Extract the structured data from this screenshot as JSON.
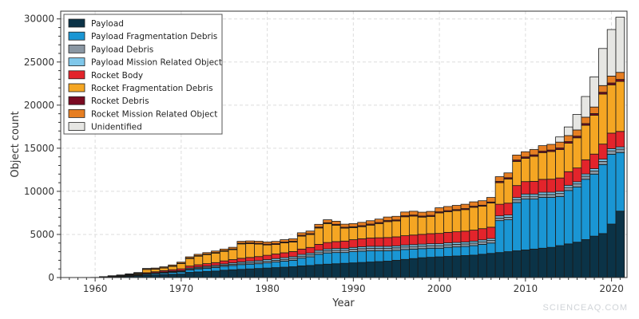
{
  "chart_data": {
    "type": "bar",
    "stacked": true,
    "xlabel": "Year",
    "ylabel": "Object count",
    "xlim": [
      1956,
      2021.8
    ],
    "ylim": [
      0,
      30900
    ],
    "xticks": [
      1960,
      1970,
      1980,
      1990,
      2000,
      2010,
      2020
    ],
    "yticks": [
      0,
      5000,
      10000,
      15000,
      20000,
      25000,
      30000
    ],
    "grid": true,
    "legend_position": "top-left",
    "x": [
      1957,
      1958,
      1959,
      1960,
      1961,
      1962,
      1963,
      1964,
      1965,
      1966,
      1967,
      1968,
      1969,
      1970,
      1971,
      1972,
      1973,
      1974,
      1975,
      1976,
      1977,
      1978,
      1979,
      1980,
      1981,
      1982,
      1983,
      1984,
      1985,
      1986,
      1987,
      1988,
      1989,
      1990,
      1991,
      1992,
      1993,
      1994,
      1995,
      1996,
      1997,
      1998,
      1999,
      2000,
      2001,
      2002,
      2003,
      2004,
      2005,
      2006,
      2007,
      2008,
      2009,
      2010,
      2011,
      2012,
      2013,
      2014,
      2015,
      2016,
      2017,
      2018,
      2019,
      2020,
      2021
    ],
    "series": [
      {
        "name": "Payload",
        "color": "#0b3347",
        "values": [
          0,
          5,
          10,
          20,
          40,
          70,
          100,
          140,
          200,
          260,
          300,
          350,
          380,
          400,
          600,
          650,
          700,
          750,
          850,
          900,
          950,
          1000,
          1050,
          1100,
          1150,
          1200,
          1250,
          1350,
          1400,
          1500,
          1550,
          1600,
          1650,
          1700,
          1750,
          1800,
          1850,
          1900,
          2000,
          2100,
          2200,
          2300,
          2350,
          2400,
          2450,
          2500,
          2550,
          2600,
          2700,
          2800,
          2900,
          3000,
          3100,
          3200,
          3300,
          3400,
          3500,
          3700,
          3900,
          4100,
          4400,
          4800,
          5100,
          6200,
          7700
        ]
      },
      {
        "name": "Payload Fragmentation Debris",
        "color": "#1a96d4",
        "values": [
          0,
          0,
          0,
          0,
          10,
          20,
          40,
          60,
          80,
          120,
          150,
          180,
          220,
          250,
          300,
          350,
          380,
          400,
          450,
          500,
          550,
          550,
          550,
          600,
          650,
          700,
          750,
          900,
          1000,
          1200,
          1300,
          1300,
          1250,
          1300,
          1300,
          1300,
          1250,
          1200,
          1150,
          1150,
          1100,
          1050,
          1050,
          1000,
          1050,
          1050,
          1050,
          1100,
          1150,
          1200,
          3700,
          3700,
          5600,
          5900,
          5800,
          5900,
          5800,
          5700,
          6200,
          6400,
          7000,
          7200,
          8000,
          8100,
          6800
        ]
      },
      {
        "name": "Payload Debris",
        "color": "#8a97a3",
        "values": [
          0,
          0,
          0,
          0,
          5,
          10,
          15,
          20,
          30,
          40,
          50,
          60,
          70,
          80,
          100,
          110,
          120,
          130,
          140,
          150,
          160,
          170,
          180,
          190,
          200,
          210,
          220,
          230,
          240,
          250,
          260,
          270,
          280,
          290,
          300,
          300,
          300,
          300,
          300,
          300,
          300,
          300,
          300,
          300,
          300,
          300,
          300,
          300,
          300,
          300,
          300,
          300,
          320,
          330,
          330,
          340,
          340,
          350,
          350,
          360,
          360,
          370,
          380,
          400,
          400
        ]
      },
      {
        "name": "Payload Mission Related Object",
        "color": "#7fc7ea",
        "values": [
          0,
          0,
          0,
          0,
          5,
          10,
          15,
          20,
          30,
          40,
          50,
          60,
          70,
          80,
          100,
          110,
          120,
          130,
          140,
          150,
          160,
          170,
          180,
          190,
          200,
          200,
          200,
          200,
          200,
          200,
          200,
          200,
          200,
          200,
          220,
          220,
          220,
          220,
          220,
          220,
          220,
          220,
          220,
          220,
          220,
          220,
          220,
          220,
          220,
          220,
          250,
          250,
          250,
          250,
          250,
          250,
          250,
          250,
          250,
          250,
          250,
          250,
          250,
          250,
          250
        ]
      },
      {
        "name": "Rocket Body",
        "color": "#e3242b",
        "values": [
          0,
          0,
          0,
          0,
          20,
          30,
          40,
          50,
          70,
          100,
          120,
          150,
          170,
          200,
          230,
          260,
          290,
          320,
          350,
          380,
          410,
          440,
          470,
          500,
          530,
          560,
          590,
          620,
          650,
          700,
          750,
          800,
          850,
          900,
          930,
          960,
          990,
          1020,
          1050,
          1080,
          1110,
          1140,
          1170,
          1200,
          1220,
          1240,
          1260,
          1280,
          1300,
          1320,
          1350,
          1380,
          1400,
          1450,
          1480,
          1500,
          1520,
          1550,
          1580,
          1600,
          1650,
          1700,
          1750,
          1800,
          1800
        ]
      },
      {
        "name": "Rocket Fragmentation Debris",
        "color": "#f5a623",
        "values": [
          0,
          0,
          0,
          0,
          10,
          40,
          50,
          80,
          90,
          380,
          300,
          300,
          390,
          600,
          870,
          1000,
          1050,
          1100,
          1110,
          1150,
          1670,
          1600,
          1450,
          1200,
          1100,
          1150,
          1100,
          1500,
          1500,
          1900,
          2200,
          1900,
          1500,
          1400,
          1400,
          1500,
          1650,
          1850,
          1840,
          2200,
          2200,
          2000,
          2000,
          2380,
          2400,
          2450,
          2500,
          2650,
          2600,
          2800,
          2500,
          2800,
          2800,
          2700,
          2900,
          3100,
          3200,
          3300,
          3300,
          3500,
          4000,
          4500,
          5800,
          5600,
          5800
        ]
      },
      {
        "name": "Rocket Debris",
        "color": "#7a0a22",
        "values": [
          0,
          0,
          0,
          0,
          5,
          10,
          10,
          15,
          20,
          25,
          30,
          35,
          40,
          45,
          50,
          55,
          60,
          65,
          70,
          75,
          80,
          85,
          90,
          95,
          100,
          100,
          100,
          100,
          100,
          100,
          100,
          100,
          100,
          100,
          120,
          120,
          120,
          120,
          120,
          120,
          120,
          120,
          120,
          120,
          120,
          120,
          120,
          120,
          120,
          120,
          150,
          150,
          160,
          160,
          170,
          170,
          180,
          180,
          190,
          190,
          200,
          200,
          210,
          220,
          230
        ]
      },
      {
        "name": "Rocket Mission Related Object",
        "color": "#e67e22",
        "values": [
          0,
          0,
          0,
          0,
          10,
          20,
          30,
          40,
          60,
          90,
          100,
          110,
          120,
          130,
          150,
          160,
          170,
          180,
          190,
          200,
          220,
          230,
          240,
          250,
          260,
          270,
          280,
          290,
          300,
          320,
          340,
          360,
          360,
          360,
          380,
          390,
          400,
          410,
          420,
          430,
          440,
          450,
          460,
          470,
          480,
          490,
          500,
          510,
          520,
          530,
          550,
          560,
          580,
          600,
          620,
          640,
          660,
          680,
          700,
          720,
          740,
          760,
          780,
          800,
          820
        ]
      },
      {
        "name": "Unidentified",
        "color": "#e6e6e3",
        "values": [
          0,
          0,
          0,
          0,
          0,
          0,
          0,
          0,
          0,
          0,
          0,
          0,
          0,
          0,
          0,
          0,
          0,
          0,
          0,
          0,
          0,
          0,
          0,
          0,
          0,
          0,
          0,
          0,
          0,
          0,
          0,
          0,
          0,
          0,
          0,
          0,
          0,
          0,
          0,
          0,
          0,
          0,
          0,
          0,
          0,
          0,
          0,
          0,
          0,
          0,
          0,
          0,
          0,
          0,
          0,
          0,
          0,
          600,
          1000,
          1800,
          2400,
          3500,
          4300,
          5400,
          6400
        ]
      }
    ]
  },
  "watermark": "SCIENCEAQ.COM"
}
